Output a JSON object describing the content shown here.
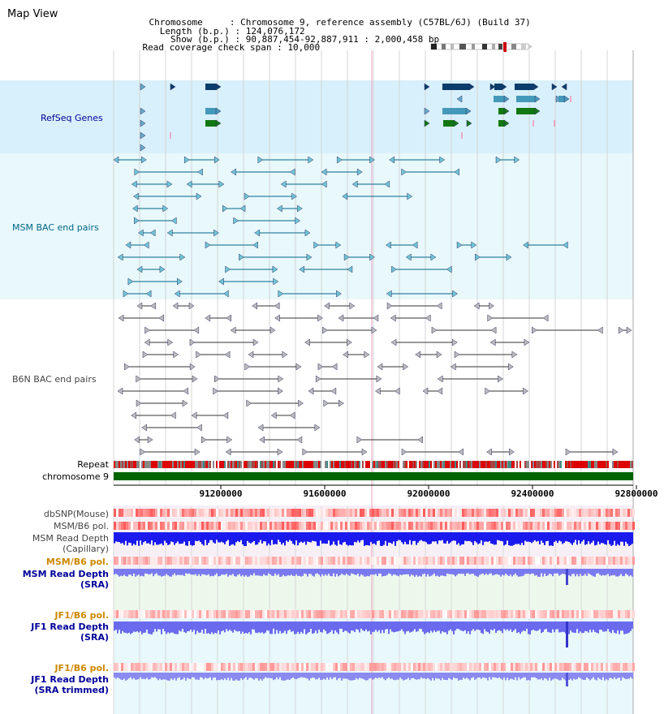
{
  "title": "Map View",
  "info": {
    "chromosome_key": "Chromosome",
    "chromosome_value": "Chromosome 9, reference assembly (C57BL/6J) (Build 37)",
    "length_key": "Length (b.p.)",
    "length_value": "124,076,172",
    "show_key": "Show (b.p.)",
    "show_value": "90,887,454-92,887,911 : 2,000,458 bp",
    "coverage_key": "Read coverage check span",
    "coverage_value": "10,000"
  },
  "tracks": {
    "refseq": {
      "label": "RefSeq Genes",
      "color": "#000099"
    },
    "msm_bac": {
      "label": "MSM BAC end pairs",
      "color": "#006688"
    },
    "b6n_bac": {
      "label": "B6N BAC end pairs",
      "color": "#333333"
    },
    "repeat": {
      "label": "Repeat"
    },
    "chromosome": {
      "label": "chromosome 9"
    }
  },
  "axis": {
    "ticks": [
      "91200000",
      "91600000",
      "92000000",
      "92400000",
      "92800000"
    ]
  },
  "lower_tracks": [
    {
      "id": "dbsnp",
      "label": "dbSNP(Mouse)",
      "label2": "",
      "color": "#444444"
    },
    {
      "id": "msm_b6_pol1",
      "label": "MSM/B6 pol.",
      "label2": "",
      "color": "#444444"
    },
    {
      "id": "msm_depth_cap",
      "label": "MSM Read Depth",
      "label2": "(Capillary)",
      "color": "#444444"
    },
    {
      "id": "msm_b6_pol2",
      "label": "MSM/B6 pol.",
      "label2": "",
      "color": "#cc8800"
    },
    {
      "id": "msm_depth_sra",
      "label": "MSM Read Depth",
      "label2": "(SRA)",
      "color": "#000099"
    },
    {
      "id": "jf1_b6_pol1",
      "label": "JF1/B6 pol.",
      "label2": "",
      "color": "#cc8800"
    },
    {
      "id": "jf1_depth_sra",
      "label": "JF1 Read Depth",
      "label2": "(SRA)",
      "color": "#000099"
    },
    {
      "id": "jf1_b6_pol2",
      "label": "JF1/B6 pol.",
      "label2": "",
      "color": "#cc8800"
    },
    {
      "id": "jf1_depth_trim",
      "label": "JF1 Read Depth",
      "label2": "(SRA trimmed)",
      "color": "#000099"
    }
  ]
}
